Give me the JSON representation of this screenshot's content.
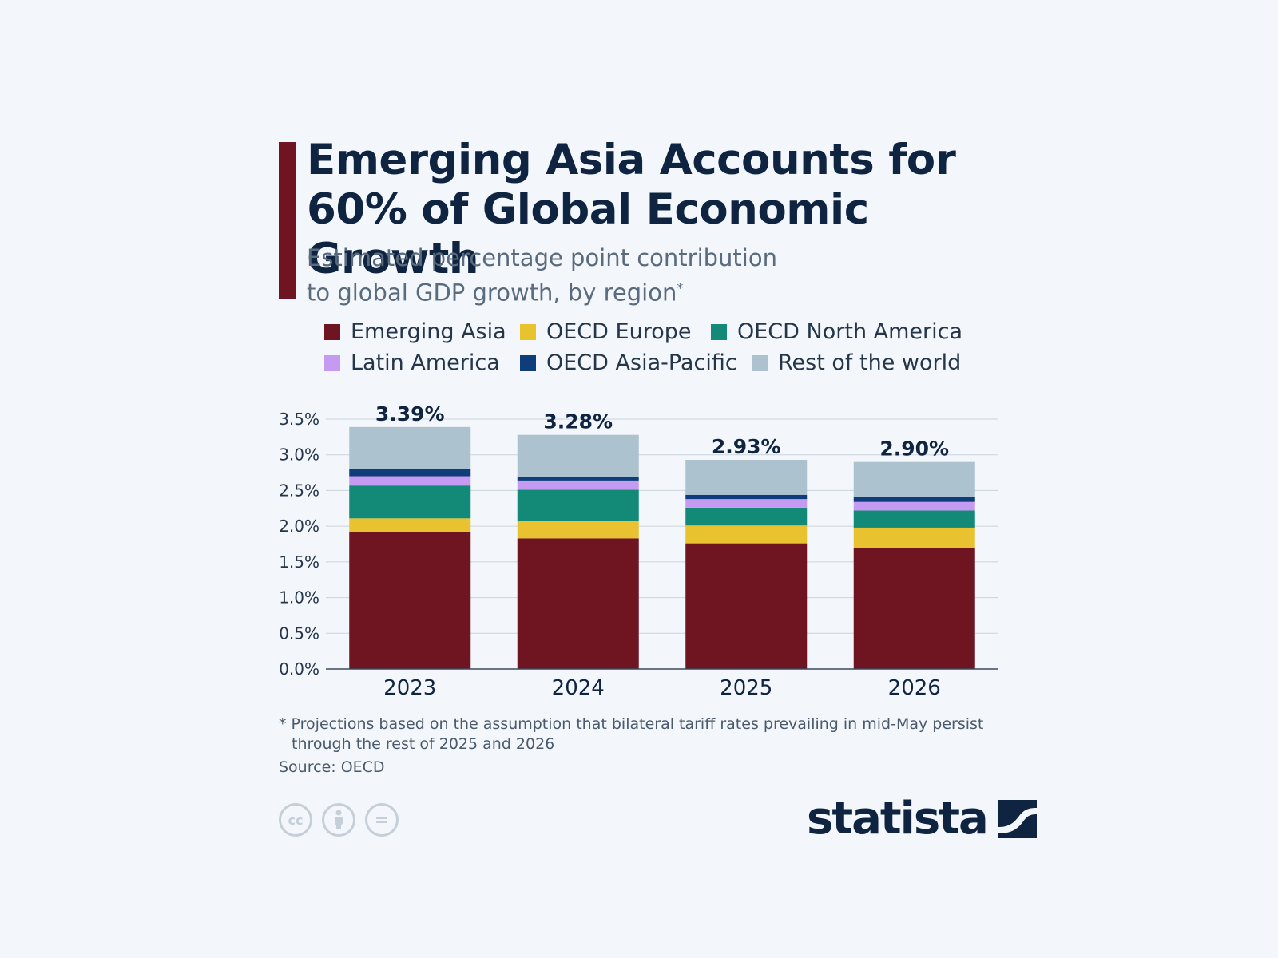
{
  "header": {
    "title_line1": "Emerging Asia Accounts for",
    "title_line2": "60% of Global Economic Growth",
    "subtitle_line1": "Estimated percentage point contribution",
    "subtitle_line2": "to global GDP growth, by region",
    "subtitle_mark": "*",
    "accent_color": "#6f1421"
  },
  "legend": [
    {
      "label": "Emerging Asia",
      "color": "#6f1421"
    },
    {
      "label": "OECD Europe",
      "color": "#e8c22f"
    },
    {
      "label": "OECD North America",
      "color": "#138a78"
    },
    {
      "label": "Latin America",
      "color": "#c59bf2"
    },
    {
      "label": "OECD Asia-Pacific",
      "color": "#0f3c7a"
    },
    {
      "label": "Rest of the world",
      "color": "#adc2cf"
    }
  ],
  "chart_data": {
    "type": "bar",
    "stacked": true,
    "categories": [
      "2023",
      "2024",
      "2025",
      "2026"
    ],
    "series": [
      {
        "name": "Emerging Asia",
        "color": "#6f1421",
        "values": [
          1.92,
          1.83,
          1.76,
          1.7
        ]
      },
      {
        "name": "OECD Europe",
        "color": "#e8c22f",
        "values": [
          0.19,
          0.24,
          0.25,
          0.28
        ]
      },
      {
        "name": "OECD North America",
        "color": "#138a78",
        "values": [
          0.46,
          0.44,
          0.25,
          0.24
        ]
      },
      {
        "name": "Latin America",
        "color": "#c59bf2",
        "values": [
          0.13,
          0.13,
          0.12,
          0.12
        ]
      },
      {
        "name": "OECD Asia-Pacific",
        "color": "#0f3c7a",
        "values": [
          0.1,
          0.05,
          0.06,
          0.07
        ]
      },
      {
        "name": "Rest of the world",
        "color": "#adc2cf",
        "values": [
          0.59,
          0.59,
          0.49,
          0.49
        ]
      }
    ],
    "totals": [
      "3.39%",
      "3.28%",
      "2.93%",
      "2.90%"
    ],
    "total_values": [
      3.39,
      3.28,
      2.93,
      2.9
    ],
    "yticks": [
      "0.0%",
      "0.5%",
      "1.0%",
      "1.5%",
      "2.0%",
      "2.5%",
      "3.0%",
      "3.5%"
    ],
    "ytick_values": [
      0,
      0.5,
      1.0,
      1.5,
      2.0,
      2.5,
      3.0,
      3.5
    ],
    "ylim": [
      0,
      3.5
    ],
    "grid": true,
    "legend_position": "top"
  },
  "footer": {
    "footnote_line1": "* Projections based on the assumption that bilateral tariff rates prevailing in mid-May persist",
    "footnote_line2": "through the rest of 2025 and 2026",
    "source": "Source: OECD",
    "cc_icons": [
      "cc-icon",
      "by-icon",
      "nd-icon"
    ],
    "cc_label": "cc",
    "nd_label": "=",
    "logo_text": "statista"
  }
}
